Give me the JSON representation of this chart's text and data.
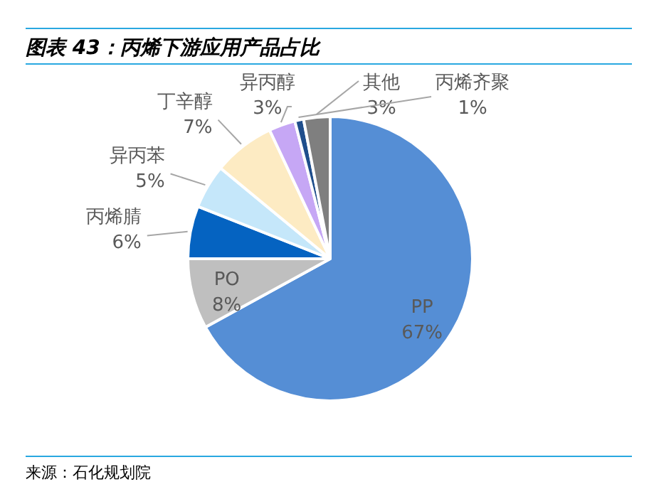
{
  "chart_data": {
    "type": "pie",
    "title": "图表 43：丙烯下游应用产品占比",
    "categories": [
      "PP",
      "PO",
      "丙烯腈",
      "异丙苯",
      "丁辛醇",
      "异丙醇",
      "丙烯齐聚",
      "其他"
    ],
    "values": [
      67,
      8,
      6,
      5,
      7,
      3,
      1,
      3
    ],
    "colors": [
      "#558ed5",
      "#bfbfbf",
      "#0563c1",
      "#c5e7fa",
      "#fdebc3",
      "#c6a7f5",
      "#1f4e8c",
      "#7f7f7f"
    ],
    "value_labels": [
      "67%",
      "8%",
      "6%",
      "5%",
      "7%",
      "3%",
      "1%",
      "3%"
    ],
    "annotations": [
      "来源：石化规划院"
    ]
  }
}
